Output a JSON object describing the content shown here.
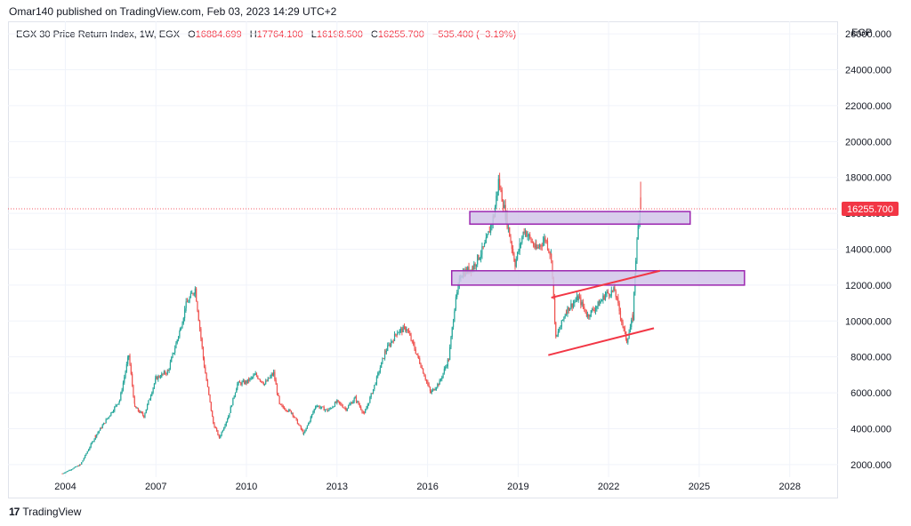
{
  "published_line": "Omar140 published on TradingView.com, Feb 03, 2023 14:29 UTC+2",
  "currency": "EGP",
  "legend": {
    "symbol": "EGX 30 Price Return Index, 1W, EGX",
    "o_label": "O",
    "o_value": "16884.699",
    "h_label": "H",
    "h_value": "17764.100",
    "l_label": "L",
    "l_value": "16198.500",
    "c_label": "C",
    "c_value": "16255.700",
    "change": "−535.400 (−3.19%)"
  },
  "footer": {
    "logo": "17",
    "brand": "TradingView"
  },
  "colors": {
    "up": "#26a69a",
    "down": "#ef5350",
    "zone_fill": "#d1c4e9",
    "zone_border": "#9c27b0",
    "trendline": "#f23645",
    "last_price": "#f23645"
  },
  "chart_data": {
    "type": "candlestick",
    "timeframe": "1W",
    "x_ticks": [
      "2004",
      "2007",
      "2010",
      "2013",
      "2016",
      "2019",
      "2022",
      "2025",
      "2028"
    ],
    "y_ticks": [
      "2000.000",
      "4000.000",
      "6000.000",
      "8000.000",
      "10000.000",
      "12000.000",
      "14000.000",
      "16000.000",
      "18000.000",
      "20000.000",
      "22000.000",
      "24000.000",
      "26000.000"
    ],
    "ylim": [
      1300,
      26700
    ],
    "xlim": [
      2002.1,
      2029.6
    ],
    "last_price": 16255.7,
    "last_price_label": "16255.700",
    "path_points": [
      [
        2003.9,
        1500
      ],
      [
        2004.5,
        2000
      ],
      [
        2005.0,
        3600
      ],
      [
        2005.4,
        4600
      ],
      [
        2005.8,
        5600
      ],
      [
        2006.1,
        8100
      ],
      [
        2006.3,
        5200
      ],
      [
        2006.6,
        4700
      ],
      [
        2007.0,
        6800
      ],
      [
        2007.4,
        7200
      ],
      [
        2007.8,
        9500
      ],
      [
        2008.0,
        10900
      ],
      [
        2008.3,
        11800
      ],
      [
        2008.6,
        7500
      ],
      [
        2008.9,
        4300
      ],
      [
        2009.1,
        3500
      ],
      [
        2009.4,
        4700
      ],
      [
        2009.7,
        6500
      ],
      [
        2010.0,
        6600
      ],
      [
        2010.3,
        7000
      ],
      [
        2010.6,
        6500
      ],
      [
        2010.9,
        7100
      ],
      [
        2011.1,
        5300
      ],
      [
        2011.5,
        4900
      ],
      [
        2011.9,
        3700
      ],
      [
        2012.3,
        5300
      ],
      [
        2012.7,
        5000
      ],
      [
        2013.0,
        5500
      ],
      [
        2013.3,
        5100
      ],
      [
        2013.6,
        5700
      ],
      [
        2013.9,
        4800
      ],
      [
        2014.2,
        6200
      ],
      [
        2014.6,
        8300
      ],
      [
        2015.0,
        9400
      ],
      [
        2015.3,
        9600
      ],
      [
        2015.7,
        7900
      ],
      [
        2016.1,
        6000
      ],
      [
        2016.4,
        6600
      ],
      [
        2016.7,
        7900
      ],
      [
        2016.9,
        10800
      ],
      [
        2017.1,
        12600
      ],
      [
        2017.5,
        13000
      ],
      [
        2017.9,
        14200
      ],
      [
        2018.2,
        15900
      ],
      [
        2018.35,
        17800
      ],
      [
        2018.6,
        15800
      ],
      [
        2018.9,
        13200
      ],
      [
        2019.2,
        15100
      ],
      [
        2019.6,
        14000
      ],
      [
        2019.9,
        14600
      ],
      [
        2020.1,
        13600
      ],
      [
        2020.25,
        9000
      ],
      [
        2020.6,
        10600
      ],
      [
        2021.0,
        11300
      ],
      [
        2021.3,
        10300
      ],
      [
        2021.7,
        11000
      ],
      [
        2021.9,
        11500
      ],
      [
        2022.2,
        11700
      ],
      [
        2022.5,
        9500
      ],
      [
        2022.6,
        8900
      ],
      [
        2022.8,
        10200
      ],
      [
        2022.9,
        13500
      ],
      [
        2023.0,
        15800
      ],
      [
        2023.05,
        16255.7
      ]
    ],
    "zones": [
      {
        "x_start": 2017.4,
        "x_end": 2024.7,
        "y_low": 15400,
        "y_high": 16100
      },
      {
        "x_start": 2016.8,
        "x_end": 2026.5,
        "y_low": 12000,
        "y_high": 12800
      }
    ],
    "trendlines": [
      {
        "from": [
          2020.1,
          11300
        ],
        "to": [
          2023.7,
          12800
        ]
      },
      {
        "from": [
          2020.0,
          8100
        ],
        "to": [
          2023.5,
          9600
        ]
      }
    ]
  }
}
